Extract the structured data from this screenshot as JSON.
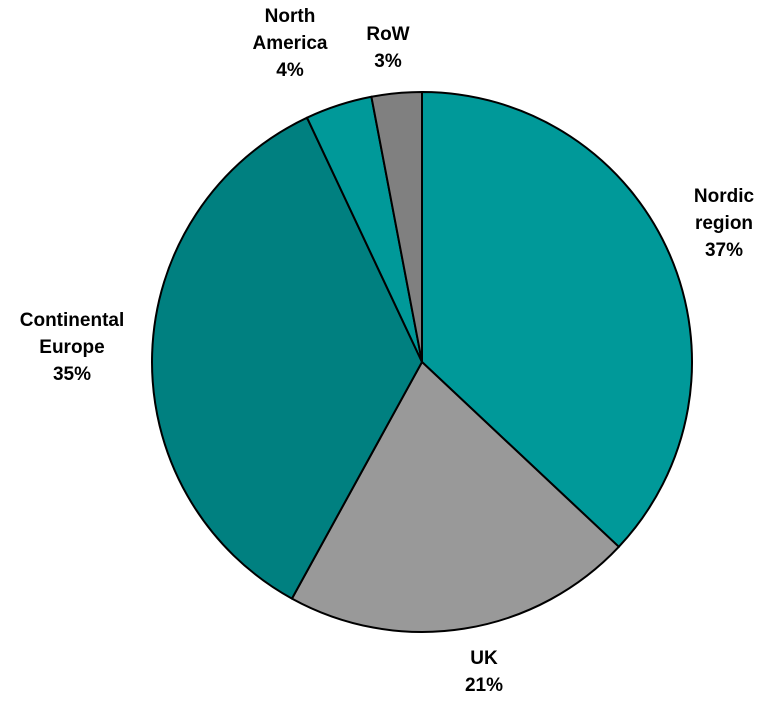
{
  "chart_data": {
    "type": "pie",
    "title": "",
    "slices": [
      {
        "label_lines": [
          "Nordic",
          "region"
        ],
        "value": 37,
        "value_label": "37%",
        "color": "#009999"
      },
      {
        "label_lines": [
          "UK"
        ],
        "value": 21,
        "value_label": "21%",
        "color": "#999999"
      },
      {
        "label_lines": [
          "Continental",
          "Europe"
        ],
        "value": 35,
        "value_label": "35%",
        "color": "#008080"
      },
      {
        "label_lines": [
          "North",
          "America"
        ],
        "value": 4,
        "value_label": "4%",
        "color": "#009999"
      },
      {
        "label_lines": [
          "RoW"
        ],
        "value": 3,
        "value_label": "3%",
        "color": "#808080"
      }
    ],
    "start": "12 o'clock",
    "direction": "clockwise",
    "outline_color": "#000000",
    "legend": "none"
  }
}
